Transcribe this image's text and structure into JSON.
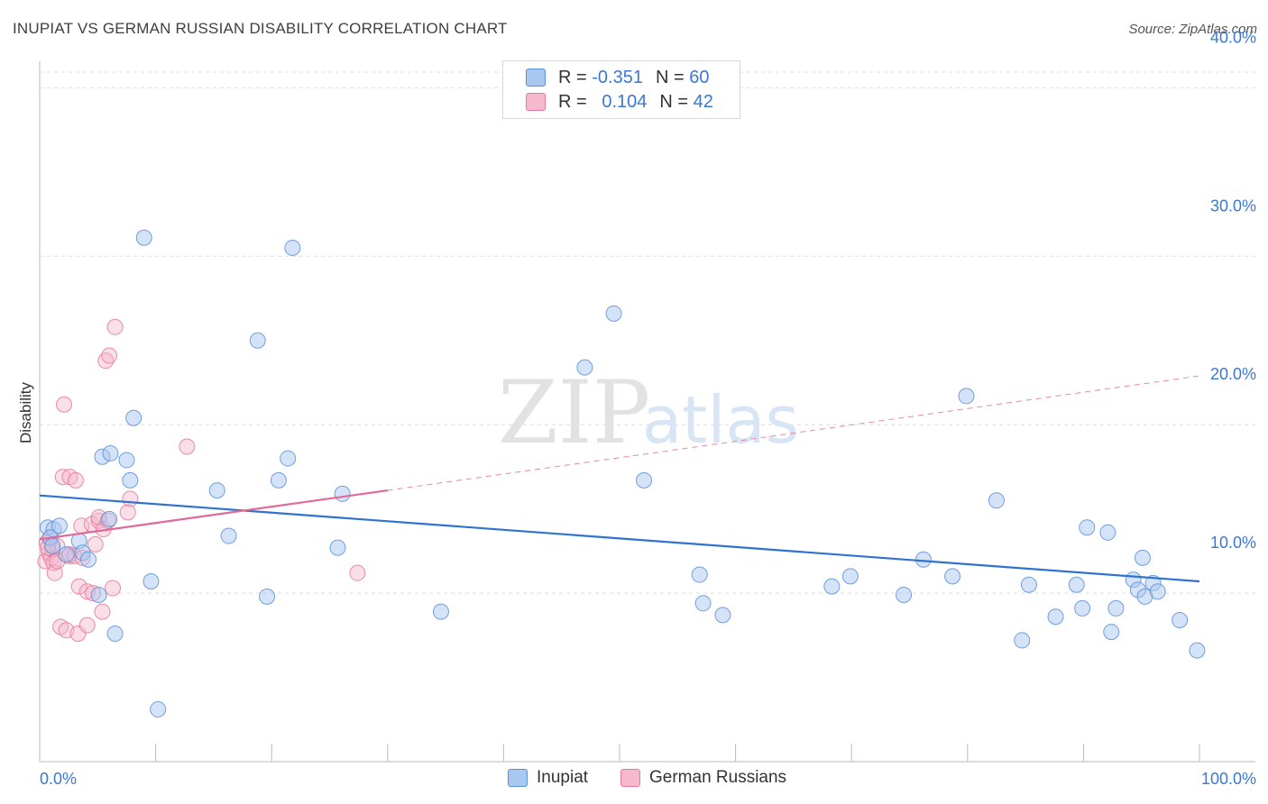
{
  "title": "INUPIAT VS GERMAN RUSSIAN DISABILITY CORRELATION CHART",
  "source": "Source: ZipAtlas.com",
  "watermark": {
    "zip": "ZIP",
    "atlas": "atlas"
  },
  "colors": {
    "inupiat_fill": "#a9c8f0",
    "inupiat_stroke": "#5a90d8",
    "inupiat_line": "#2f72d0",
    "german_fill": "#f5b8cc",
    "german_stroke": "#e6789c",
    "german_line": "#e0689a",
    "tick_label": "#3a78d4",
    "grid": "#dddddd"
  },
  "legend_top": {
    "rows": [
      {
        "r_label": "R =",
        "r_value": "-0.351",
        "n_label": "N =",
        "n_value": "60"
      },
      {
        "r_label": "R =",
        "r_value": "0.104",
        "n_label": "N =",
        "n_value": "42"
      }
    ]
  },
  "legend_bottom": {
    "items": [
      "Inupiat",
      "German Russians"
    ]
  },
  "chart_data": {
    "type": "scatter",
    "title": "INUPIAT VS GERMAN RUSSIAN DISABILITY CORRELATION CHART",
    "xlabel": "",
    "ylabel": "Disability",
    "xlim": [
      0,
      100
    ],
    "ylim": [
      0,
      42
    ],
    "x_tick_labels": [
      {
        "value": 0,
        "label": "0.0%"
      },
      {
        "value": 100,
        "label": "100.0%"
      }
    ],
    "y_ticks": [
      {
        "value": 10,
        "label": "10.0%"
      },
      {
        "value": 20,
        "label": "20.0%"
      },
      {
        "value": 30,
        "label": "30.0%"
      },
      {
        "value": 40,
        "label": "40.0%"
      }
    ],
    "grid": true,
    "series": [
      {
        "name": "Inupiat",
        "R": -0.351,
        "N": 60,
        "trend": {
          "x": [
            0,
            100
          ],
          "y": [
            15.8,
            10.7
          ],
          "style": "solid"
        },
        "points": [
          [
            0.7,
            13.9
          ],
          [
            1.2,
            13.8
          ],
          [
            1.7,
            14.0
          ],
          [
            2.3,
            12.3
          ],
          [
            3.4,
            13.1
          ],
          [
            3.7,
            12.4
          ],
          [
            4.2,
            12.0
          ],
          [
            5.1,
            9.9
          ],
          [
            5.4,
            18.1
          ],
          [
            6.0,
            14.4
          ],
          [
            6.1,
            18.3
          ],
          [
            6.5,
            7.6
          ],
          [
            7.5,
            17.9
          ],
          [
            7.8,
            16.7
          ],
          [
            8.1,
            20.4
          ],
          [
            9.0,
            31.1
          ],
          [
            9.6,
            10.7
          ],
          [
            10.2,
            3.1
          ],
          [
            15.3,
            16.1
          ],
          [
            16.3,
            13.4
          ],
          [
            18.8,
            25.0
          ],
          [
            19.6,
            9.8
          ],
          [
            20.6,
            16.7
          ],
          [
            21.4,
            18.0
          ],
          [
            21.8,
            30.5
          ],
          [
            25.7,
            12.7
          ],
          [
            26.1,
            15.9
          ],
          [
            34.6,
            8.9
          ],
          [
            47.0,
            23.4
          ],
          [
            49.5,
            26.6
          ],
          [
            52.1,
            16.7
          ],
          [
            56.9,
            11.1
          ],
          [
            57.2,
            9.4
          ],
          [
            58.9,
            8.7
          ],
          [
            68.3,
            10.4
          ],
          [
            69.9,
            11.0
          ],
          [
            74.5,
            9.9
          ],
          [
            76.2,
            12.0
          ],
          [
            78.7,
            11.0
          ],
          [
            79.9,
            21.7
          ],
          [
            82.5,
            15.5
          ],
          [
            84.7,
            7.2
          ],
          [
            85.3,
            10.5
          ],
          [
            87.6,
            8.6
          ],
          [
            89.4,
            10.5
          ],
          [
            89.9,
            9.1
          ],
          [
            90.3,
            13.9
          ],
          [
            92.1,
            13.6
          ],
          [
            92.4,
            7.7
          ],
          [
            92.8,
            9.1
          ],
          [
            94.3,
            10.8
          ],
          [
            94.7,
            10.2
          ],
          [
            95.1,
            12.1
          ],
          [
            95.3,
            9.8
          ],
          [
            96.0,
            10.6
          ],
          [
            96.4,
            10.1
          ],
          [
            98.3,
            8.4
          ],
          [
            99.8,
            6.6
          ],
          [
            0.9,
            13.3
          ],
          [
            1.1,
            12.8
          ]
        ]
      },
      {
        "name": "German Russians",
        "R": 0.104,
        "N": 42,
        "trend_solid": {
          "x": [
            0,
            30
          ],
          "y": [
            13.2,
            16.1
          ]
        },
        "trend_dashed": {
          "x": [
            30,
            100
          ],
          "y": [
            16.1,
            22.9
          ]
        },
        "points": [
          [
            0.5,
            11.9
          ],
          [
            0.6,
            13.0
          ],
          [
            0.8,
            12.4
          ],
          [
            0.9,
            13.2
          ],
          [
            1.0,
            12.1
          ],
          [
            1.1,
            12.6
          ],
          [
            1.2,
            11.8
          ],
          [
            1.3,
            11.2
          ],
          [
            1.5,
            12.8
          ],
          [
            1.5,
            11.9
          ],
          [
            1.8,
            8.0
          ],
          [
            2.0,
            16.9
          ],
          [
            2.1,
            21.2
          ],
          [
            2.3,
            7.8
          ],
          [
            2.5,
            12.2
          ],
          [
            2.6,
            12.3
          ],
          [
            2.6,
            16.9
          ],
          [
            3.0,
            12.2
          ],
          [
            3.1,
            16.7
          ],
          [
            3.3,
            7.6
          ],
          [
            3.4,
            10.4
          ],
          [
            3.6,
            14.0
          ],
          [
            3.7,
            12.1
          ],
          [
            4.1,
            8.1
          ],
          [
            4.1,
            10.1
          ],
          [
            4.5,
            14.1
          ],
          [
            4.6,
            10.0
          ],
          [
            4.8,
            12.9
          ],
          [
            5.1,
            14.3
          ],
          [
            5.1,
            14.5
          ],
          [
            5.4,
            8.9
          ],
          [
            5.5,
            13.8
          ],
          [
            5.7,
            23.8
          ],
          [
            5.9,
            14.3
          ],
          [
            6.0,
            24.1
          ],
          [
            6.3,
            10.3
          ],
          [
            6.5,
            25.8
          ],
          [
            7.6,
            14.8
          ],
          [
            7.8,
            15.6
          ],
          [
            12.7,
            18.7
          ],
          [
            27.4,
            11.2
          ],
          [
            0.7,
            12.7
          ]
        ]
      }
    ]
  }
}
